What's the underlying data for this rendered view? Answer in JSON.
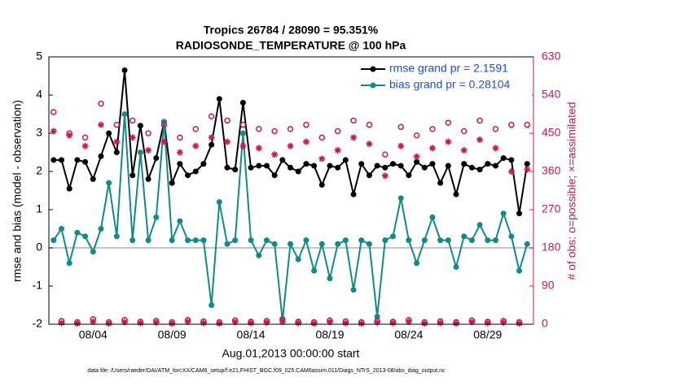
{
  "chart_data": {
    "type": "line",
    "title": "Tropics 26784 / 28090 = 95.351%",
    "subtitle": "RADIOSONDE_TEMPERATURE @ 100 hPa",
    "x_label": "Aug.01,2013 00:00:00 start",
    "y_label": "rmse and bias (model - observation)",
    "y2_label": "# of obs: o=possible; ×=assimilated",
    "footnote": "data file: /Users/raeder/DAI/ATM_forcXX/CAM6_setup/f.e21.FHIST_BGC.f09_025.CAM6assim.011/Diags_NTrS_2013-08/obs_diag_output.nc",
    "x": [
      0.5,
      1,
      1.5,
      2,
      2.5,
      3,
      3.5,
      4,
      4.5,
      5,
      5.5,
      6,
      6.5,
      7,
      7.5,
      8,
      8.5,
      9,
      9.5,
      10,
      10.5,
      11,
      11.5,
      12,
      12.5,
      13,
      13.5,
      14,
      14.5,
      15,
      15.5,
      16,
      16.5,
      17,
      17.5,
      18,
      18.5,
      19,
      19.5,
      20,
      20.5,
      21,
      21.5,
      22,
      22.5,
      23,
      23.5,
      24,
      24.5,
      25,
      25.5,
      26,
      26.5,
      27,
      27.5,
      28,
      28.5,
      29,
      29.5,
      30,
      30.5
    ],
    "xlim": [
      0.2,
      30.9
    ],
    "xticks": [
      {
        "value": 3,
        "label": "08/04"
      },
      {
        "value": 8,
        "label": "08/09"
      },
      {
        "value": 13,
        "label": "08/14"
      },
      {
        "value": 18,
        "label": "08/19"
      },
      {
        "value": 23,
        "label": "08/24"
      },
      {
        "value": 28,
        "label": "08/29"
      }
    ],
    "ylim": [
      -2,
      5
    ],
    "yticks": [
      -2,
      -1,
      0,
      1,
      2,
      3,
      4,
      5
    ],
    "y2lim": [
      0,
      630
    ],
    "y2ticks": [
      0,
      90,
      180,
      270,
      360,
      450,
      540,
      630
    ],
    "zero_line": true,
    "legend": "northeast",
    "series": [
      {
        "name": "rmse grand pr = 2.1591",
        "color": "#000000",
        "marker": "dot",
        "line": true,
        "values": [
          2.3,
          2.3,
          1.55,
          2.3,
          2.25,
          1.8,
          2.4,
          3.0,
          2.5,
          4.65,
          1.9,
          3.2,
          1.8,
          2.35,
          3.3,
          1.7,
          2.2,
          1.9,
          2.0,
          2.2,
          2.7,
          3.9,
          2.1,
          2.05,
          3.8,
          2.1,
          2.15,
          2.15,
          1.9,
          2.3,
          2.1,
          2.0,
          2.2,
          2.15,
          1.65,
          2.15,
          2.1,
          2.3,
          1.4,
          2.2,
          1.9,
          2.15,
          2.1,
          2.2,
          2.15,
          1.9,
          2.25,
          2.1,
          2.2,
          1.7,
          2.15,
          1.4,
          2.2,
          2.1,
          2.05,
          2.2,
          2.15,
          2.35,
          2.3,
          0.9,
          2.2
        ]
      },
      {
        "name": "bias grand pr = 0.28104",
        "color": "#138a8a",
        "marker": "dot",
        "line": true,
        "values": [
          0.2,
          0.5,
          -0.4,
          0.4,
          0.3,
          -0.1,
          0.5,
          1.7,
          0.3,
          3.5,
          0.2,
          2.5,
          0.2,
          0.8,
          3.3,
          0.2,
          0.7,
          0.2,
          0.2,
          0.2,
          -1.5,
          1.2,
          0.1,
          0.2,
          3.0,
          0.2,
          -0.2,
          0.2,
          0.1,
          -1.9,
          0.1,
          -0.3,
          0.2,
          -0.6,
          0.1,
          -0.8,
          0.1,
          0.2,
          -1.1,
          0.2,
          0.1,
          -1.8,
          0.2,
          0.3,
          1.3,
          0.2,
          -0.4,
          0.2,
          0.8,
          0.2,
          0.2,
          -0.5,
          0.3,
          0.2,
          0.6,
          0.2,
          0.2,
          0.9,
          0.3,
          -0.6,
          0.1
        ]
      },
      {
        "color": "#c8185a",
        "marker": "circle",
        "line": false,
        "axis": "y2",
        "values": [
          500,
          8,
          450,
          5,
          440,
          12,
          520,
          5,
          470,
          10,
          480,
          6,
          450,
          8,
          470,
          5,
          440,
          10,
          460,
          7,
          490,
          5,
          480,
          9,
          470,
          6,
          460,
          8,
          455,
          12,
          460,
          6,
          470,
          5,
          440,
          9,
          455,
          7,
          480,
          5,
          470,
          8,
          400,
          6,
          465,
          10,
          445,
          5,
          460,
          7,
          475,
          5,
          455,
          9,
          480,
          6,
          460,
          8,
          470,
          5,
          470
        ]
      },
      {
        "color": "#c8185a",
        "marker": "asterisk",
        "line": false,
        "axis": "y2",
        "values": [
          455,
          3,
          445,
          2,
          420,
          6,
          470,
          2,
          430,
          5,
          440,
          3,
          410,
          4,
          430,
          2,
          405,
          6,
          420,
          3,
          440,
          2,
          430,
          5,
          420,
          3,
          415,
          4,
          400,
          6,
          420,
          3,
          430,
          2,
          390,
          5,
          410,
          3,
          440,
          2,
          425,
          4,
          350,
          3,
          420,
          6,
          395,
          2,
          415,
          3,
          430,
          2,
          410,
          5,
          435,
          3,
          415,
          4,
          360,
          2,
          365
        ]
      }
    ]
  }
}
